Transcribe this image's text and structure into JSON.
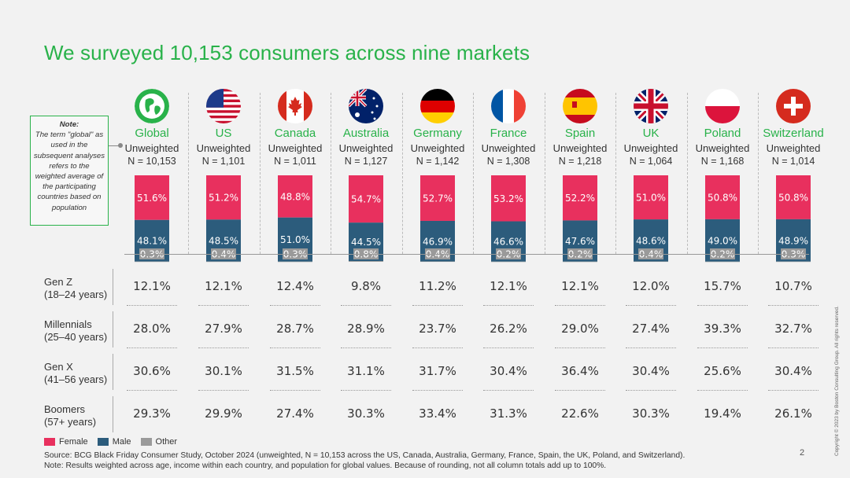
{
  "title": "We surveyed 10,153 consumers across nine markets",
  "note": {
    "heading": "Note:",
    "text": "The term \"global\" as used in the subsequent analyses refers to the weighted average of the participating countries based on population"
  },
  "colors": {
    "female": "#e8305e",
    "male": "#2c5c7c",
    "other": "#9a9a9a",
    "accent": "#29b24a"
  },
  "unweighted_label": "Unweighted",
  "markets": [
    {
      "name": "Global",
      "n": "N = 10,153",
      "flag": "globe-icon"
    },
    {
      "name": "US",
      "n": "N = 1,101",
      "flag": "us-flag-icon"
    },
    {
      "name": "Canada",
      "n": "N = 1,011",
      "flag": "canada-flag-icon"
    },
    {
      "name": "Australia",
      "n": "N = 1,127",
      "flag": "australia-flag-icon"
    },
    {
      "name": "Germany",
      "n": "N = 1,142",
      "flag": "germany-flag-icon"
    },
    {
      "name": "France",
      "n": "N = 1,308",
      "flag": "france-flag-icon"
    },
    {
      "name": "Spain",
      "n": "N = 1,218",
      "flag": "spain-flag-icon"
    },
    {
      "name": "UK",
      "n": "N = 1,064",
      "flag": "uk-flag-icon"
    },
    {
      "name": "Poland",
      "n": "N = 1,168",
      "flag": "poland-flag-icon"
    },
    {
      "name": "Switzerland",
      "n": "N = 1,014",
      "flag": "switzerland-flag-icon"
    }
  ],
  "chart_data": {
    "type": "bar",
    "stacked": true,
    "categories": [
      "Global",
      "US",
      "Canada",
      "Australia",
      "Germany",
      "France",
      "Spain",
      "UK",
      "Poland",
      "Switzerland"
    ],
    "series": [
      {
        "name": "Female",
        "values": [
          51.6,
          51.2,
          48.8,
          54.7,
          52.7,
          53.2,
          52.2,
          51.0,
          50.8,
          50.8
        ],
        "labels": [
          "51.6%",
          "51.2%",
          "48.8%",
          "54.7%",
          "52.7%",
          "53.2%",
          "52.2%",
          "51.0%",
          "50.8%",
          "50.8%"
        ]
      },
      {
        "name": "Male",
        "values": [
          48.1,
          48.5,
          51.0,
          44.5,
          46.9,
          46.6,
          47.6,
          48.6,
          49.0,
          48.9
        ],
        "labels": [
          "48.1%",
          "48.5%",
          "51.0%",
          "44.5%",
          "46.9%",
          "46.6%",
          "47.6%",
          "48.6%",
          "49.0%",
          "48.9%"
        ]
      },
      {
        "name": "Other",
        "values": [
          0.3,
          0.4,
          0.3,
          0.8,
          0.4,
          0.2,
          0.2,
          0.4,
          0.2,
          0.3
        ],
        "labels": [
          "0.3%",
          "0.4%",
          "0.3%",
          "0.8%",
          "0.4%",
          "0.2%",
          "0.2%",
          "0.4%",
          "0.2%",
          "0.3%"
        ]
      }
    ],
    "ylim": [
      0,
      100
    ],
    "legend_position": "bottom-left"
  },
  "age_groups": [
    {
      "label_line1": "Gen Z",
      "label_line2": "(18–24 years)",
      "values": [
        "12.1%",
        "12.1%",
        "12.4%",
        "9.8%",
        "11.2%",
        "12.1%",
        "12.1%",
        "12.0%",
        "15.7%",
        "10.7%"
      ]
    },
    {
      "label_line1": "Millennials",
      "label_line2": "(25–40 years)",
      "values": [
        "28.0%",
        "27.9%",
        "28.7%",
        "28.9%",
        "23.7%",
        "26.2%",
        "29.0%",
        "27.4%",
        "39.3%",
        "32.7%"
      ]
    },
    {
      "label_line1": "Gen X",
      "label_line2": "(41–56 years)",
      "values": [
        "30.6%",
        "30.1%",
        "31.5%",
        "31.1%",
        "31.7%",
        "30.4%",
        "36.4%",
        "30.4%",
        "25.6%",
        "30.4%"
      ]
    },
    {
      "label_line1": "Boomers",
      "label_line2": "(57+ years)",
      "values": [
        "29.3%",
        "29.9%",
        "27.4%",
        "30.3%",
        "33.4%",
        "31.3%",
        "22.6%",
        "30.3%",
        "19.4%",
        "26.1%"
      ]
    }
  ],
  "legend": {
    "female": "Female",
    "male": "Male",
    "other": "Other"
  },
  "footnotes": {
    "source": "Source: BCG Black Friday Consumer Study, October 2024 (unweighted, N = 10,153 across the US, Canada, Australia, Germany, France, Spain, the UK, Poland, and Switzerland).",
    "note": "Note: Results weighted across age, income within each country, and population for global values. Because of rounding, not all column totals add up to 100%."
  },
  "page_number": "2",
  "copyright": "Copyright © 2023 by Boston Consulting Group. All rights reserved."
}
